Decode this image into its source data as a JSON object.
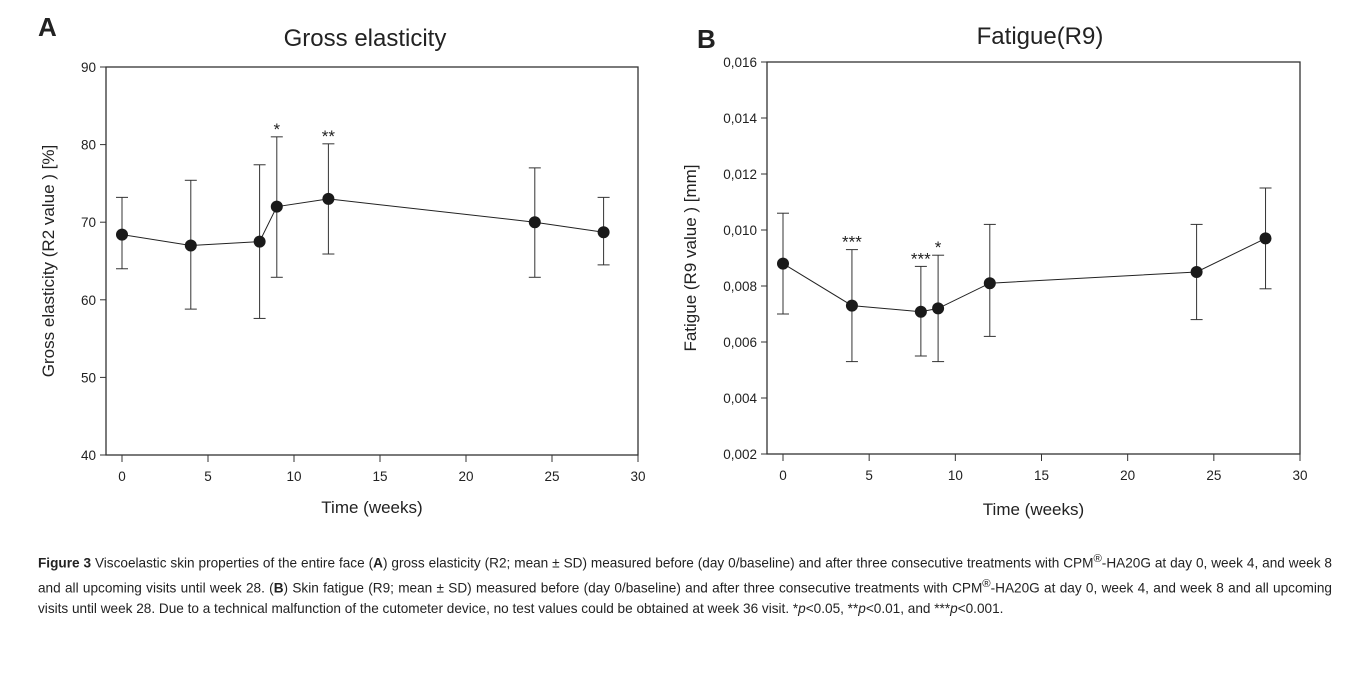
{
  "chart_data": [
    {
      "type": "line",
      "panel_label": "A",
      "title": "Gross elasticity",
      "xlabel": "Time (weeks)",
      "ylabel": "Gross elasticity (R2 value ) [%]",
      "xlim": [
        0,
        30
      ],
      "ylim": [
        40,
        90
      ],
      "xticks": [
        0,
        5,
        10,
        15,
        20,
        25,
        30
      ],
      "yticks": [
        40,
        50,
        60,
        70,
        80,
        90
      ],
      "ytick_labels": [
        "40",
        "50",
        "60",
        "70",
        "80",
        "90"
      ],
      "grid": false,
      "x": [
        0,
        4,
        8,
        9,
        12,
        24,
        28
      ],
      "y": [
        68.4,
        67.0,
        67.5,
        72.0,
        73.0,
        70.0,
        68.7
      ],
      "err_low": [
        64.0,
        58.8,
        57.6,
        62.9,
        65.9,
        62.9,
        64.5
      ],
      "err_high": [
        73.2,
        75.4,
        77.4,
        81.0,
        80.1,
        77.0,
        73.2
      ],
      "annotations": [
        "",
        "",
        "",
        "*",
        "**",
        "",
        ""
      ]
    },
    {
      "type": "line",
      "panel_label": "B",
      "title": "Fatigue(R9)",
      "xlabel": "Time (weeks)",
      "ylabel": "Fatigue (R9 value ) [mm]",
      "xlim": [
        0,
        30
      ],
      "ylim": [
        0.002,
        0.016
      ],
      "xticks": [
        0,
        5,
        10,
        15,
        20,
        25,
        30
      ],
      "yticks": [
        0.002,
        0.004,
        0.006,
        0.008,
        0.01,
        0.012,
        0.014,
        0.016
      ],
      "ytick_labels": [
        "0,002",
        "0,004",
        "0,006",
        "0,008",
        "0,010",
        "0,012",
        "0,014",
        "0,016"
      ],
      "grid": false,
      "x": [
        0,
        4,
        8,
        9,
        12,
        24,
        28
      ],
      "y": [
        0.0088,
        0.0073,
        0.00708,
        0.0072,
        0.0081,
        0.0085,
        0.0097
      ],
      "err_low": [
        0.007,
        0.0053,
        0.0055,
        0.0053,
        0.0062,
        0.0068,
        0.0079
      ],
      "err_high": [
        0.0106,
        0.0093,
        0.0087,
        0.0091,
        0.0102,
        0.0102,
        0.0115
      ],
      "annotations": [
        "",
        "***",
        "***",
        "*",
        "",
        "",
        ""
      ]
    }
  ],
  "caption": {
    "figure_label": "Figure 3",
    "text_1": " Viscoelastic skin properties of the entire face (",
    "a": "A",
    "text_2": ") gross elasticity (R2; mean ± SD) measured before (day 0/baseline) and after three consecutive treatments with CPM",
    "reg": "®",
    "text_3": "-HA20G at day 0, week 4, and week 8 and all upcoming visits until week 28. (",
    "b": "B",
    "text_4": ") Skin fatigue (R9; mean ± SD) measured before (day 0/baseline) and after three consecutive treatments with CPM",
    "text_5": "-HA20G at day 0, week 4, and week 8 and all upcoming visits until week 28. Due to a technical malfunction of the cutometer device, no test values could be obtained at week 36 visit. *",
    "p1": "p",
    "text_6": "<0.05, **",
    "text_7": "<0.01, and ***",
    "text_8": "<0.001."
  }
}
